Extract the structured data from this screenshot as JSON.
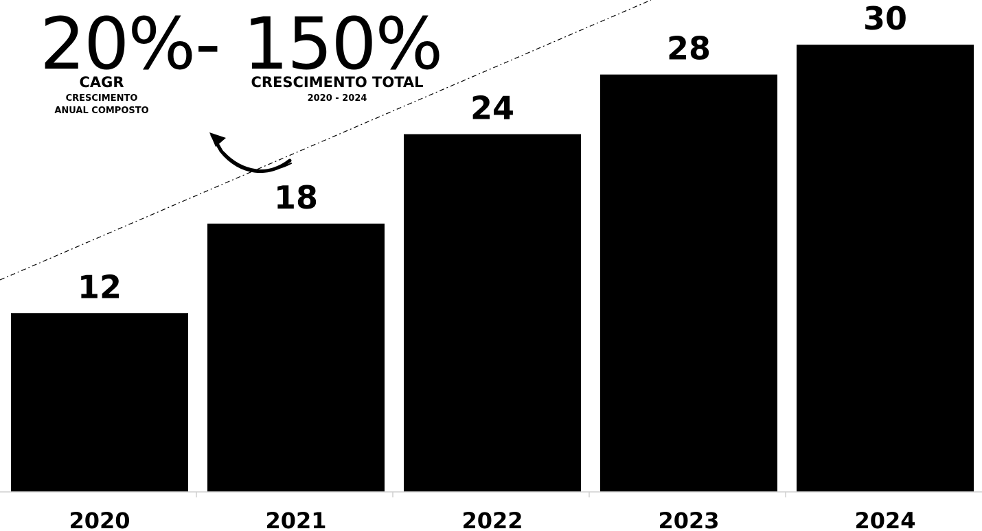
{
  "headline": {
    "cagr_value": "20%",
    "separator": "-",
    "total_value": "150%",
    "cagr_label": "CAGR",
    "cagr_sub_1": "CRESCIMENTO",
    "cagr_sub_2": "ANUAL COMPOSTO",
    "total_label": "CRESCIMENTO TOTAL",
    "total_period": "2020 - 2024"
  },
  "chart_data": {
    "type": "bar",
    "categories": [
      "2020",
      "2021",
      "2022",
      "2023",
      "2024"
    ],
    "values": [
      12,
      18,
      24,
      28,
      30
    ],
    "data_labels": [
      "12",
      "18",
      "24",
      "28",
      "30"
    ],
    "title": "",
    "xlabel": "",
    "ylabel": "",
    "ylim": [
      0,
      33
    ],
    "grid": false,
    "legend": "none",
    "bar_color": "#000000",
    "trend_line": "dashed",
    "annotation": "curved-arrow"
  }
}
